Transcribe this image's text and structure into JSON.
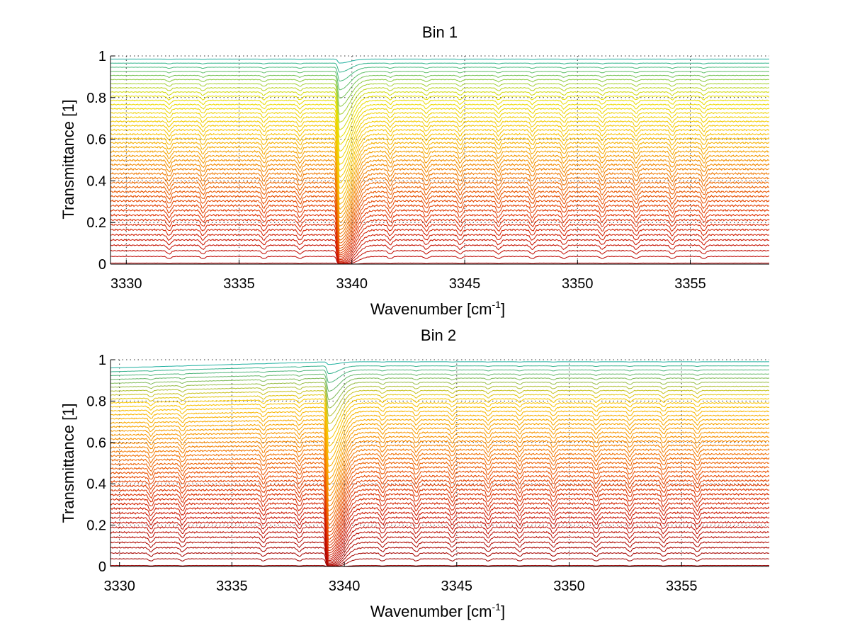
{
  "chart_data": [
    {
      "type": "line",
      "title": "Bin 1",
      "xlabel": "Wavenumber [cm",
      "xlabel_sup": "-1",
      "xlabel_tail": "]",
      "ylabel": "Transmittance [1]",
      "xlim": [
        3329.3,
        3358.5
      ],
      "ylim": [
        0,
        1
      ],
      "grid": true,
      "xticks": [
        "3330",
        "3335",
        "3340",
        "3345",
        "3350",
        "3355"
      ],
      "yticks": [
        "0",
        "0.2",
        "0.4",
        "0.6",
        "0.8",
        "1"
      ],
      "n_curves": 46,
      "baseline_min": 0.005,
      "baseline_max": 0.985,
      "main_absorption_center": 3339.45,
      "minor_line_positions": [
        3331.9,
        3333.4,
        3336.1,
        3337.7,
        3341.7,
        3343.3,
        3344.8,
        3346.5,
        3348.0,
        3349.4,
        3351.1,
        3352.6,
        3354.2,
        3355.6
      ],
      "colormap": [
        "#b80000",
        "#e03000",
        "#f07800",
        "#f8c000",
        "#e8e000",
        "#20b0a0"
      ]
    },
    {
      "type": "line",
      "title": "Bin 2",
      "xlabel": "Wavenumber [cm",
      "xlabel_sup": "-1",
      "xlabel_tail": "]",
      "ylabel": "Transmittance [1]",
      "xlim": [
        3329.6,
        3358.9
      ],
      "ylim": [
        0,
        1
      ],
      "grid": true,
      "xticks": [
        "3330",
        "3335",
        "3340",
        "3345",
        "3350",
        "3355"
      ],
      "yticks": [
        "0",
        "0.2",
        "0.4",
        "0.6",
        "0.8",
        "1"
      ],
      "n_curves": 46,
      "baseline_min": 0.005,
      "baseline_max": 0.99,
      "main_absorption_center": 3339.3,
      "minor_line_positions": [
        3331.4,
        3332.8,
        3336.4,
        3338.0,
        3341.7,
        3343.2,
        3344.8,
        3346.4,
        3347.8,
        3349.3,
        3351.2,
        3352.7,
        3354.2,
        3355.7
      ],
      "colormap": [
        "#9a0000",
        "#c81000",
        "#e84800",
        "#f89000",
        "#f8c800",
        "#20b0a0"
      ]
    }
  ]
}
